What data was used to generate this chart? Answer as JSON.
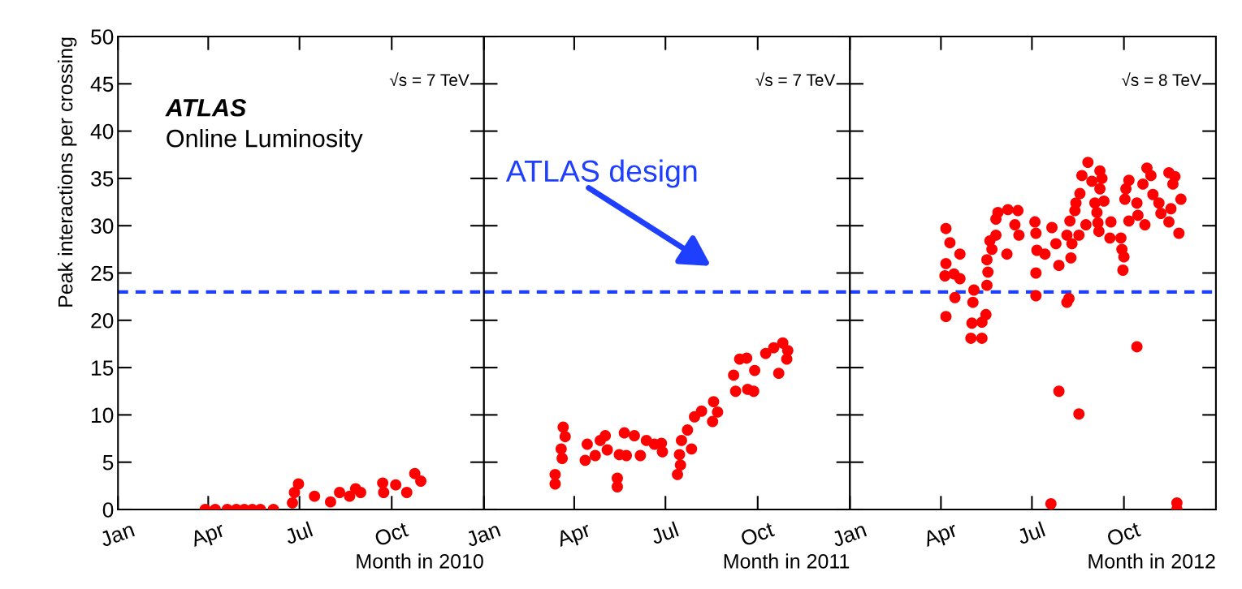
{
  "chart_data": [
    {
      "type": "scatter",
      "xlabel": "Month in 2010",
      "ylabel": "Peak interactions per crossing",
      "marker": "circle",
      "grid": false,
      "legend": false,
      "annotations": [
        "ATLAS",
        "Online Luminosity",
        "√s = 7 TeV"
      ],
      "xlim": [
        "2010-01-01",
        "2011-01-01"
      ],
      "xticks": [
        {
          "value": "2010-01-01",
          "label": "Jan"
        },
        {
          "value": "2010-04-01",
          "label": "Apr"
        },
        {
          "value": "2010-07-01",
          "label": "Jul"
        },
        {
          "value": "2010-10-01",
          "label": "Oct"
        }
      ],
      "ylim": [
        0,
        50
      ],
      "yticks": [
        0,
        5,
        10,
        15,
        20,
        25,
        30,
        35,
        40,
        45,
        50
      ],
      "ref_lines": [
        {
          "axis": "y",
          "value": 23,
          "color": "#1f3fff",
          "line_style": "dashed"
        }
      ],
      "series": [
        {
          "color": "#ff0000",
          "x": [
            "2010-03-29",
            "2010-04-08",
            "2010-04-20",
            "2010-04-29",
            "2010-05-07",
            "2010-05-15",
            "2010-05-23",
            "2010-06-05",
            "2010-06-24",
            "2010-06-26",
            "2010-06-30",
            "2010-07-16",
            "2010-08-01",
            "2010-08-10",
            "2010-08-20",
            "2010-08-26",
            "2010-08-31",
            "2010-09-22",
            "2010-09-23",
            "2010-10-05",
            "2010-10-16",
            "2010-10-24",
            "2010-10-30"
          ],
          "values": [
            0,
            0,
            0,
            0,
            0,
            0,
            0,
            0,
            0.7,
            1.8,
            2.7,
            1.4,
            0.8,
            1.8,
            1.4,
            2.2,
            1.8,
            2.8,
            1.8,
            2.6,
            1.8,
            3.8,
            3.0
          ]
        }
      ]
    },
    {
      "type": "scatter",
      "xlabel": "Month in 2011",
      "marker": "circle",
      "grid": false,
      "legend": false,
      "tick_labels": "x",
      "annotations": [
        "√s = 7 TeV"
      ],
      "xlim": [
        "2011-01-01",
        "2012-01-01"
      ],
      "xticks": [
        {
          "value": "2011-01-01",
          "label": "Jan"
        },
        {
          "value": "2011-04-01",
          "label": "Apr"
        },
        {
          "value": "2011-07-01",
          "label": "Jul"
        },
        {
          "value": "2011-10-01",
          "label": "Oct"
        }
      ],
      "ylim": [
        0,
        50
      ],
      "yticks": [
        0,
        5,
        10,
        15,
        20,
        25,
        30,
        35,
        40,
        45,
        50
      ],
      "ref_lines": [
        {
          "axis": "y",
          "value": 23,
          "color": "#1f3fff",
          "line_style": "dashed",
          "label": "ATLAS design"
        }
      ],
      "series": [
        {
          "color": "#ff0000",
          "x": [
            "2011-03-13",
            "2011-03-13",
            "2011-03-20",
            "2011-03-19",
            "2011-03-23",
            "2011-03-21",
            "2011-04-12",
            "2011-04-14",
            "2011-04-22",
            "2011-04-27",
            "2011-05-02",
            "2011-05-04",
            "2011-05-14",
            "2011-05-14",
            "2011-05-16",
            "2011-05-21",
            "2011-05-23",
            "2011-05-31",
            "2011-06-06",
            "2011-06-12",
            "2011-06-20",
            "2011-06-27",
            "2011-06-28",
            "2011-07-13",
            "2011-07-16",
            "2011-07-15",
            "2011-07-17",
            "2011-07-27",
            "2011-07-23",
            "2011-07-30",
            "2011-08-06",
            "2011-08-17",
            "2011-08-22",
            "2011-08-18",
            "2011-09-07",
            "2011-09-09",
            "2011-09-13",
            "2011-09-20",
            "2011-09-21",
            "2011-09-27",
            "2011-09-28",
            "2011-10-09",
            "2011-10-17",
            "2011-10-22",
            "2011-10-26",
            "2011-10-30",
            "2011-10-31"
          ],
          "values": [
            2.7,
            3.7,
            5.4,
            6.4,
            7.7,
            8.7,
            5.2,
            6.9,
            5.7,
            7.3,
            7.8,
            6.3,
            2.4,
            3.3,
            5.8,
            8.1,
            5.7,
            7.8,
            5.7,
            7.3,
            6.9,
            7.0,
            6.1,
            3.7,
            4.7,
            5.8,
            7.3,
            6.4,
            8.4,
            9.8,
            10.4,
            9.3,
            10.3,
            11.4,
            14.2,
            12.5,
            15.9,
            16.0,
            12.7,
            12.5,
            14.7,
            16.5,
            17.1,
            14.4,
            17.6,
            15.9,
            16.8
          ]
        }
      ]
    },
    {
      "type": "scatter",
      "xlabel": "Month in 2012",
      "marker": "circle",
      "grid": false,
      "legend": false,
      "tick_labels": "x",
      "annotations": [
        "√s = 8 TeV"
      ],
      "xlim": [
        "2012-01-01",
        "2013-01-01"
      ],
      "xticks": [
        {
          "value": "2012-01-01",
          "label": "Jan"
        },
        {
          "value": "2012-04-01",
          "label": "Apr"
        },
        {
          "value": "2012-07-01",
          "label": "Jul"
        },
        {
          "value": "2012-10-01",
          "label": "Oct"
        }
      ],
      "ylim": [
        0,
        50
      ],
      "yticks": [
        0,
        5,
        10,
        15,
        20,
        25,
        30,
        35,
        40,
        45,
        50
      ],
      "ref_lines": [
        {
          "axis": "y",
          "value": 23,
          "color": "#1f3fff",
          "line_style": "dashed"
        }
      ],
      "series": [
        {
          "color": "#ff0000",
          "x": [
            "2012-04-06",
            "2012-04-10",
            "2012-04-06",
            "2012-04-05",
            "2012-04-14",
            "2012-04-20",
            "2012-04-20",
            "2012-04-15",
            "2012-04-06",
            "2012-05-04",
            "2012-05-03",
            "2012-05-02",
            "2012-05-01",
            "2012-05-12",
            "2012-05-12",
            "2012-05-16",
            "2012-05-17",
            "2012-05-18",
            "2012-05-17",
            "2012-05-22",
            "2012-05-20",
            "2012-05-26",
            "2012-05-26",
            "2012-05-28",
            "2012-06-06",
            "2012-06-07",
            "2012-06-17",
            "2012-06-18",
            "2012-06-14",
            "2012-07-04",
            "2012-07-05",
            "2012-07-06",
            "2012-07-05",
            "2012-07-05",
            "2012-07-14",
            "2012-07-21",
            "2012-07-28",
            "2012-07-25",
            "2012-08-05",
            "2012-08-09",
            "2012-08-10",
            "2012-08-07",
            "2012-08-05",
            "2012-08-17",
            "2012-08-08",
            "2012-08-13",
            "2012-08-14",
            "2012-08-18",
            "2012-08-20",
            "2012-08-26",
            "2012-08-30",
            "2012-08-24",
            "2012-09-07",
            "2012-09-09",
            "2012-09-07",
            "2012-09-11",
            "2012-09-02",
            "2012-09-04",
            "2012-09-05",
            "2012-09-06",
            "2012-09-18",
            "2012-09-17",
            "2012-09-28",
            "2012-09-29",
            "2012-10-01",
            "2012-09-30",
            "2012-10-06",
            "2012-10-03",
            "2012-10-02",
            "2012-10-06",
            "2012-10-14",
            "2012-10-15",
            "2012-10-22",
            "2012-10-20",
            "2012-10-24",
            "2012-10-28",
            "2012-10-30",
            "2012-11-05",
            "2012-11-07",
            "2012-11-15",
            "2012-11-21",
            "2012-11-19",
            "2012-11-17",
            "2012-11-15",
            "2012-11-27",
            "2012-11-25",
            "2012-10-14",
            "2012-07-28",
            "2012-08-17",
            "2012-07-20",
            "2012-11-23",
            "2012-11-23"
          ],
          "values": [
            29.7,
            28.2,
            26.0,
            24.7,
            24.9,
            27.0,
            24.4,
            22.4,
            20.4,
            23.2,
            21.9,
            19.7,
            18.1,
            18.1,
            19.8,
            20.6,
            23.7,
            25.1,
            26.4,
            27.5,
            28.4,
            29.0,
            30.7,
            31.4,
            27.0,
            31.7,
            31.6,
            29.0,
            30.1,
            30.4,
            29.2,
            27.4,
            25.0,
            22.6,
            27.0,
            29.8,
            25.8,
            28.1,
            29.0,
            26.6,
            28.1,
            22.3,
            21.9,
            29.0,
            30.5,
            31.6,
            32.4,
            33.4,
            35.3,
            36.7,
            34.7,
            30.1,
            35.8,
            35.0,
            33.9,
            32.6,
            32.4,
            31.4,
            30.3,
            29.4,
            30.4,
            28.7,
            28.7,
            27.5,
            26.7,
            25.3,
            34.8,
            33.9,
            32.8,
            30.5,
            32.4,
            31.1,
            30.1,
            34.4,
            36.1,
            35.3,
            33.3,
            32.4,
            31.3,
            35.6,
            35.2,
            34.4,
            31.8,
            30.4,
            32.8,
            29.2,
            17.2,
            12.5,
            10.1,
            0.6,
            0.7,
            0
          ]
        }
      ]
    }
  ]
}
